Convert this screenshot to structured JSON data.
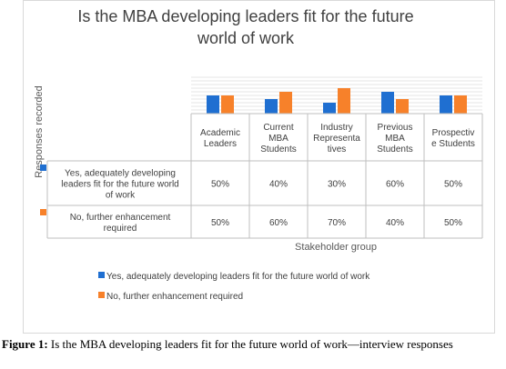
{
  "chart_data": {
    "type": "bar",
    "title_lines": [
      "Is the MBA developing leaders fit for the future",
      "world of work"
    ],
    "ylabel": "Responses recorded",
    "xlabel": "Stakeholder group",
    "categories": [
      [
        "Academic",
        "Leaders"
      ],
      [
        "Current",
        "MBA",
        "Students"
      ],
      [
        "Industry",
        "Representa",
        "tives"
      ],
      [
        "Previous",
        "MBA",
        "Students"
      ],
      [
        "Prospectiv",
        "e Students"
      ]
    ],
    "series": [
      {
        "name": "Yes, adequately developing leaders fit for the future world of work",
        "table_label": [
          "Yes, adequately developing",
          "leaders fit for the future world",
          "of work"
        ],
        "values": [
          50,
          40,
          30,
          60,
          50
        ],
        "labels": [
          "50%",
          "40%",
          "30%",
          "60%",
          "50%"
        ],
        "color": "#1f6fd1"
      },
      {
        "name": "No, further enhancement required",
        "table_label": [
          "No, further enhancement",
          "required"
        ],
        "values": [
          50,
          60,
          70,
          40,
          50
        ],
        "labels": [
          "50%",
          "60%",
          "70%",
          "40%",
          "50%"
        ],
        "color": "#f7812a"
      }
    ],
    "ylim": [
      0,
      100
    ],
    "grid": true,
    "legend": "bottom",
    "data_table": true
  },
  "caption": {
    "label": "Figure 1:",
    "text": "Is the MBA developing leaders fit for the future world of work—interview responses"
  }
}
